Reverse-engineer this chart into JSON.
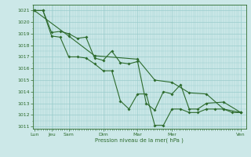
{
  "title": "",
  "xlabel": "Pression niveau de la mer( hPa )",
  "ylabel": "",
  "bg_color": "#cce8e8",
  "grid_color": "#99cccc",
  "line_color": "#2d6b2d",
  "ylim_min": 1011,
  "ylim_max": 1021.5,
  "yticks": [
    1011,
    1012,
    1013,
    1014,
    1015,
    1016,
    1017,
    1018,
    1019,
    1020,
    1021
  ],
  "major_x_positions": [
    0,
    1,
    2,
    4,
    6,
    8,
    12
  ],
  "major_x_labels": [
    "Lun",
    "Jeu",
    "Sam",
    "Dim",
    "Mar",
    "Mer",
    "Ven"
  ],
  "series1_x": [
    0.0,
    0.5,
    1.0,
    1.5,
    2.0,
    2.5,
    3.0,
    3.5,
    4.0,
    4.5,
    5.0,
    5.5,
    6.0,
    6.5,
    7.0,
    7.5,
    8.0,
    8.5,
    9.0,
    9.5,
    10.0,
    11.0,
    12.0
  ],
  "series1_y": [
    1021.0,
    1021.0,
    1019.1,
    1019.2,
    1019.0,
    1018.6,
    1018.7,
    1016.9,
    1016.7,
    1017.5,
    1016.5,
    1016.4,
    1016.6,
    1013.0,
    1012.4,
    1014.0,
    1013.8,
    1014.6,
    1012.5,
    1012.5,
    1013.0,
    1013.1,
    1012.2
  ],
  "series2_x": [
    0.0,
    0.5,
    1.0,
    1.5,
    2.0,
    2.5,
    3.0,
    3.5,
    4.0,
    4.5,
    5.0,
    5.5,
    6.0,
    6.5,
    7.0,
    7.5,
    8.0,
    8.5,
    9.0,
    9.5,
    10.0,
    10.5,
    11.0,
    11.5,
    12.0
  ],
  "series2_y": [
    1021.0,
    1021.0,
    1018.8,
    1018.7,
    1017.0,
    1017.0,
    1016.9,
    1016.4,
    1015.8,
    1015.8,
    1013.2,
    1012.5,
    1013.8,
    1013.8,
    1011.1,
    1011.1,
    1012.5,
    1012.5,
    1012.2,
    1012.2,
    1012.5,
    1012.5,
    1012.5,
    1012.2,
    1012.2
  ],
  "series3_x": [
    0,
    2,
    3.5,
    6,
    7,
    8,
    9,
    10,
    11,
    12
  ],
  "series3_y": [
    1021.0,
    1018.8,
    1017.1,
    1016.8,
    1015.0,
    1014.8,
    1013.9,
    1013.8,
    1012.5,
    1012.2
  ],
  "xlim_min": -0.1,
  "xlim_max": 12.3
}
